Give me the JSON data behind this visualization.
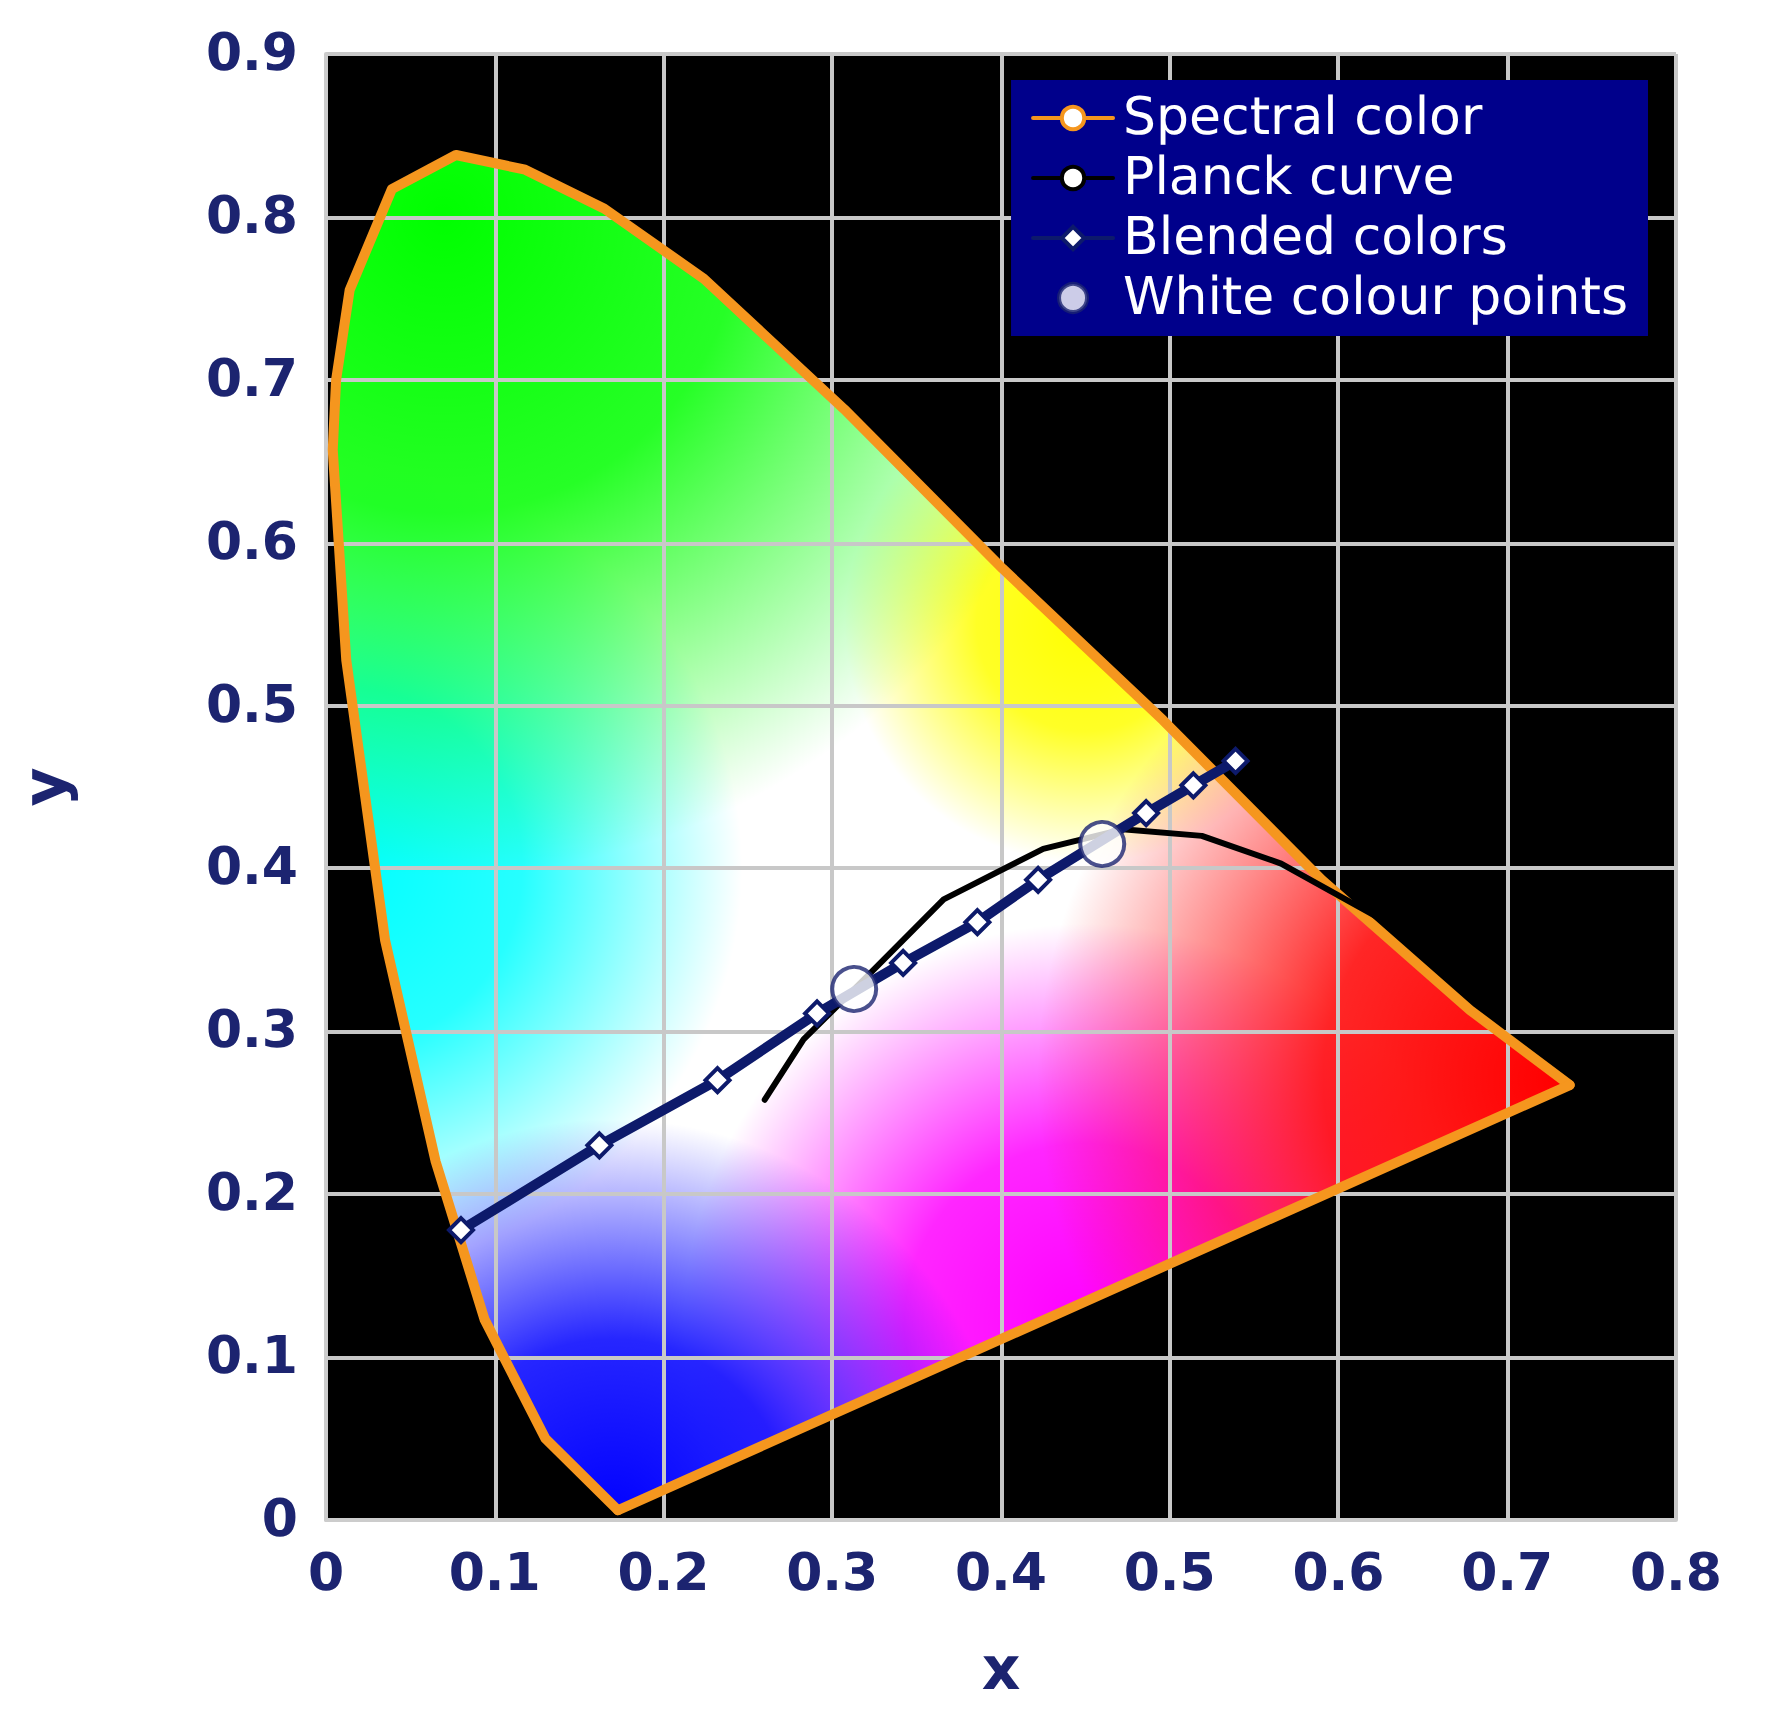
{
  "chart_data": {
    "type": "line",
    "xlabel": "x",
    "ylabel": "y",
    "xlim": [
      0,
      0.8
    ],
    "ylim": [
      0,
      0.9
    ],
    "xticks": [
      0,
      0.1,
      0.2,
      0.3,
      0.4,
      0.5,
      0.6,
      0.7,
      0.8
    ],
    "yticks": [
      0,
      0.1,
      0.2,
      0.3,
      0.4,
      0.5,
      0.6,
      0.7,
      0.8,
      0.9
    ],
    "grid": true,
    "legend": "top right",
    "series": [
      {
        "name": "Spectral color",
        "type": "line",
        "color": "#f5961e",
        "marker": "none",
        "x": [
          0.173,
          0.13,
          0.094,
          0.065,
          0.035,
          0.012,
          0.004,
          0.006,
          0.014,
          0.039,
          0.077,
          0.118,
          0.165,
          0.224,
          0.307,
          0.401,
          0.496,
          0.59,
          0.678,
          0.737
        ],
        "values": [
          0.006,
          0.05,
          0.123,
          0.22,
          0.356,
          0.528,
          0.657,
          0.7,
          0.755,
          0.817,
          0.838,
          0.829,
          0.805,
          0.762,
          0.682,
          0.584,
          0.491,
          0.393,
          0.313,
          0.267
        ]
      },
      {
        "type": "line",
        "color": "#f5961e",
        "marker": "none",
        "x": [
          0.737,
          0.173
        ],
        "values": [
          0.267,
          0.006
        ]
      },
      {
        "name": "Planck curve",
        "type": "line",
        "color": "#000000",
        "marker": "none",
        "x": [
          0.26,
          0.283,
          0.319,
          0.366,
          0.425,
          0.472,
          0.519,
          0.566,
          0.625,
          0.655
        ],
        "values": [
          0.258,
          0.295,
          0.332,
          0.381,
          0.412,
          0.424,
          0.42,
          0.403,
          0.369,
          0.346
        ]
      },
      {
        "name": "Blended colors",
        "type": "line",
        "color": "#0d1a6b",
        "marker": "diamond",
        "x": [
          0.08,
          0.162,
          0.232,
          0.291,
          0.342,
          0.386,
          0.422,
          0.486,
          0.514,
          0.539
        ],
        "values": [
          0.178,
          0.23,
          0.27,
          0.311,
          0.342,
          0.367,
          0.393,
          0.434,
          0.451,
          0.466
        ]
      },
      {
        "name": "White colour points",
        "type": "scatter",
        "color": "#ffffff",
        "marker": "circle",
        "x": [
          0.313,
          0.46
        ],
        "values": [
          0.326,
          0.415
        ]
      }
    ]
  }
}
